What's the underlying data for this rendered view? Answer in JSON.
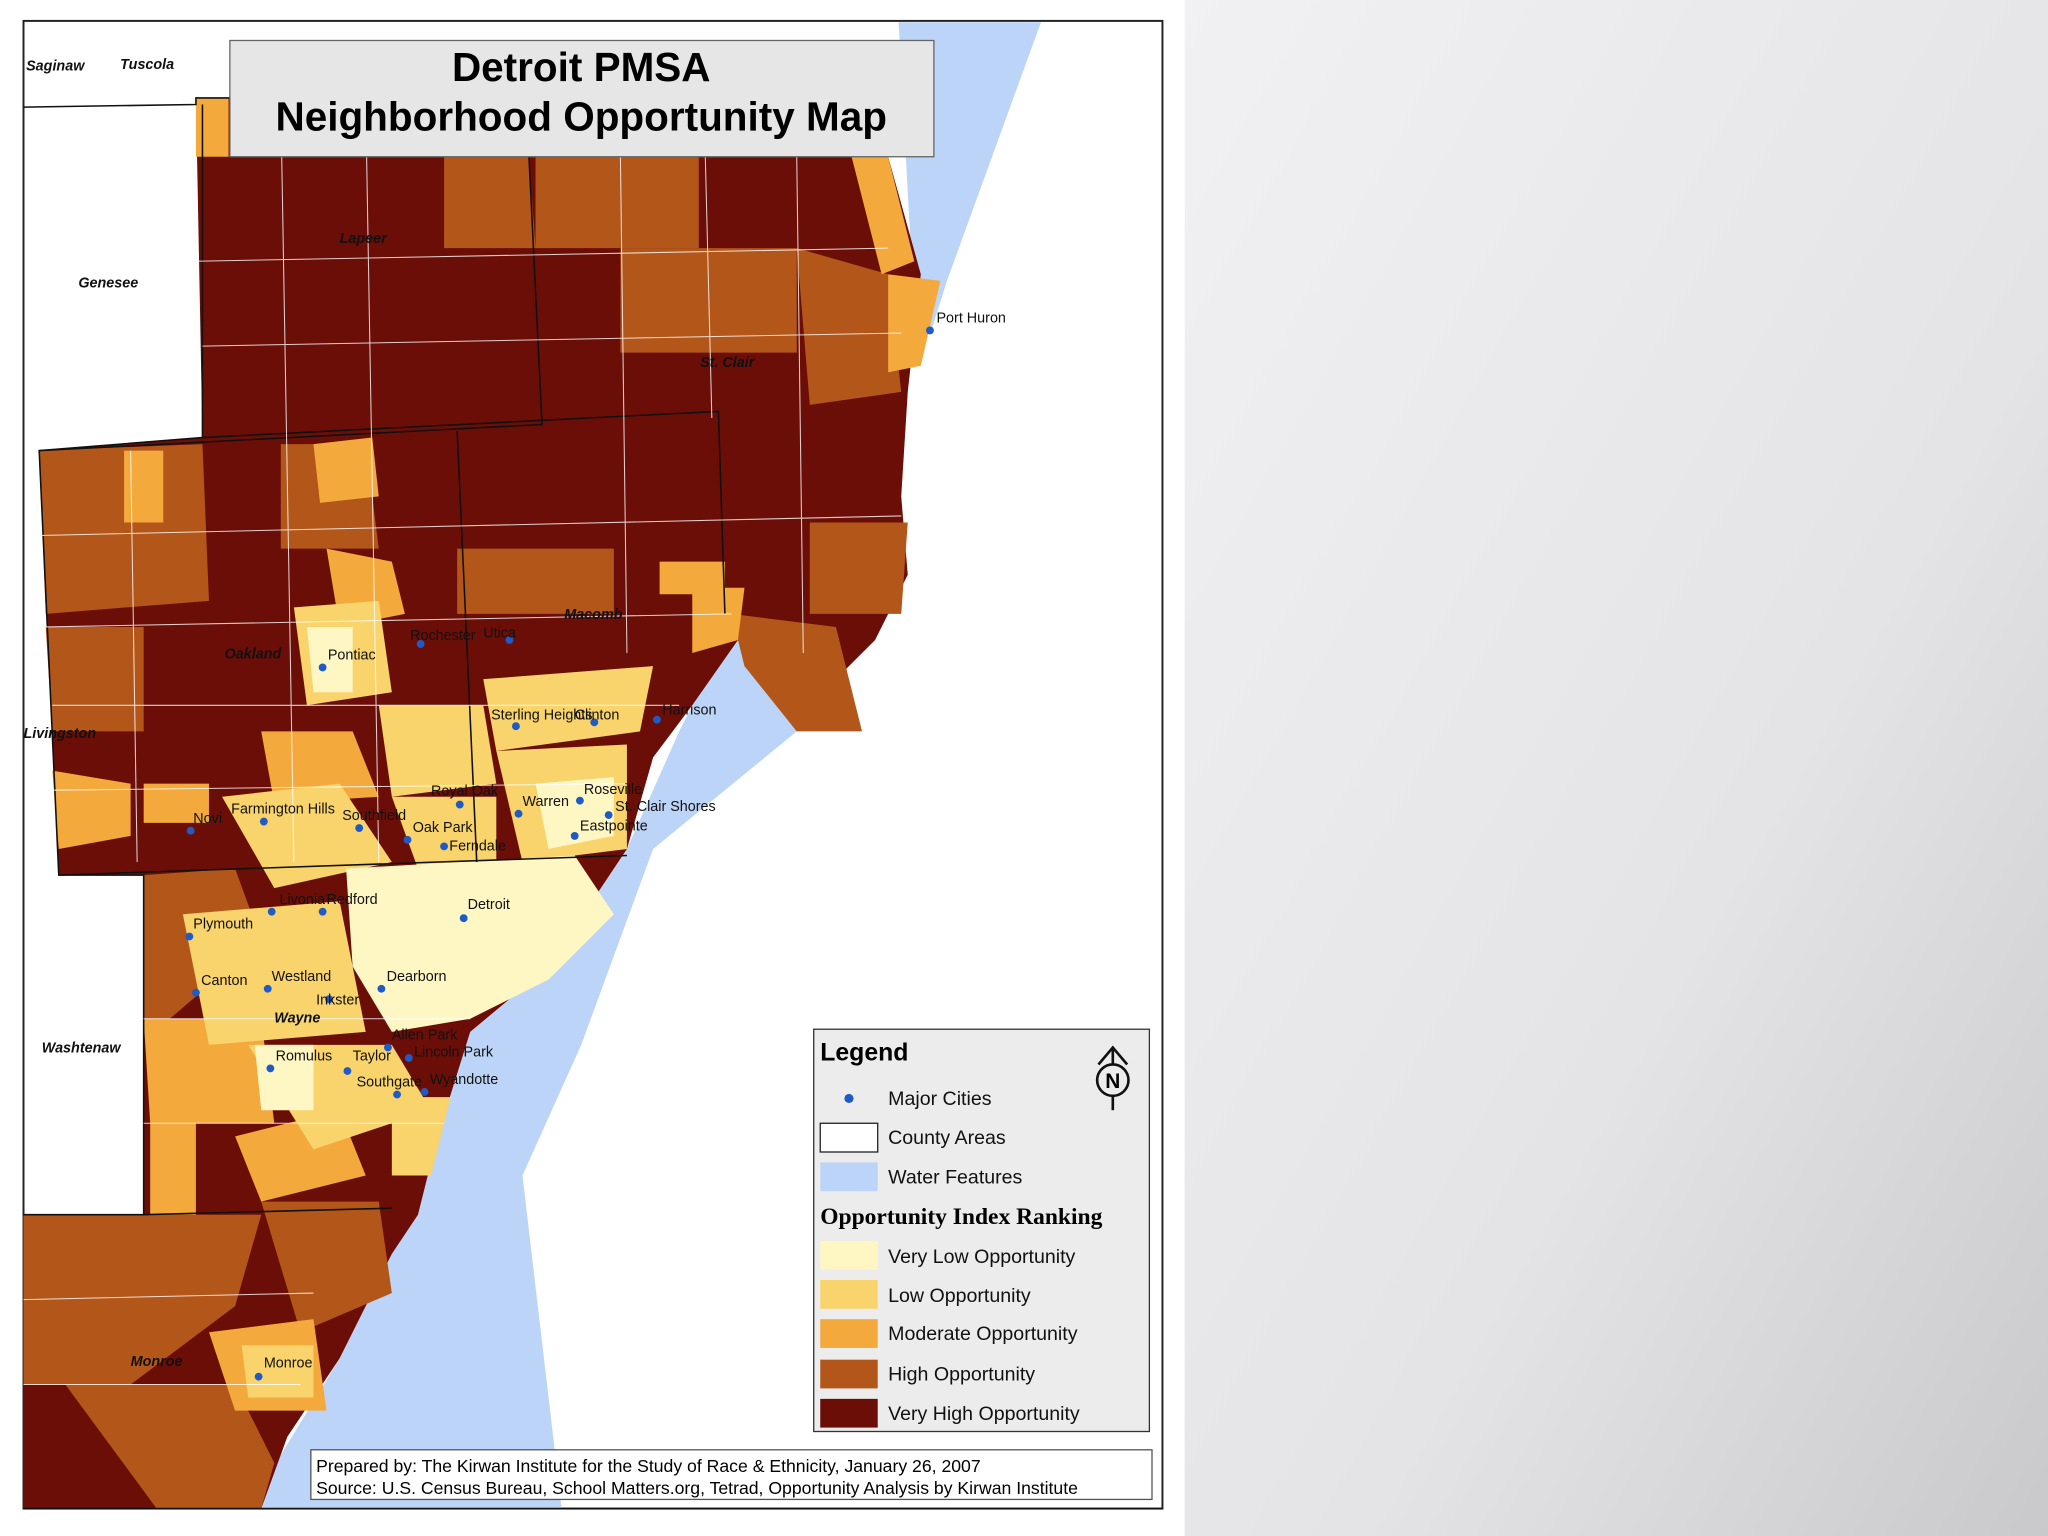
{
  "title": [
    "Detroit PMSA",
    "Neighborhood Opportunity Map"
  ],
  "counties": [
    "Saginaw",
    "Tuscola",
    "Genesee",
    "Lapeer",
    "St. Clair",
    "Macomb",
    "Oakland",
    "Livingston",
    "Washtenaw",
    "Wayne",
    "Monroe"
  ],
  "cities": [
    "Port Huron",
    "Pontiac",
    "Rochester",
    "Utica",
    "Sterling Heights",
    "Clinton",
    "Harrison",
    "Royal Oak",
    "Warren",
    "Roseville",
    "St. Clair Shores",
    "Eastpointe",
    "Farmington Hills",
    "Southfield",
    "Novi",
    "Oak Park",
    "Ferndale",
    "Livonia",
    "Redford",
    "Detroit",
    "Plymouth",
    "Canton",
    "Westland",
    "Dearborn",
    "Inkster",
    "Allen Park",
    "Romulus",
    "Taylor",
    "Lincoln Park",
    "Southgate",
    "Wyandotte",
    "Monroe"
  ],
  "legend": {
    "title": "Legend",
    "north": "N",
    "features": [
      "Major Cities",
      "County Areas",
      "Water Features"
    ],
    "ranking_title": "Opportunity Index Ranking",
    "ranking": [
      "Very Low Opportunity",
      "Low Opportunity",
      "Moderate Opportunity",
      "High Opportunity",
      "Very High Opportunity"
    ]
  },
  "credits": [
    "Prepared by: The Kirwan Institute for the Study of Race & Ethnicity, January 26, 2007",
    "Source: U.S. Census Bureau, School Matters.org, Tetrad, Opportunity Analysis by Kirwan Institute"
  ]
}
